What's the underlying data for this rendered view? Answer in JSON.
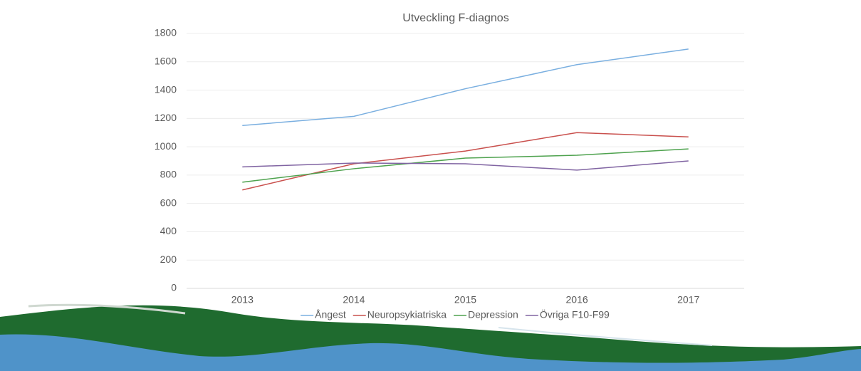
{
  "chart_data": {
    "type": "line",
    "title": "Utveckling F-diagnos",
    "categories": [
      "2013",
      "2014",
      "2015",
      "2016",
      "2017"
    ],
    "series": [
      {
        "name": "Ångest",
        "color": "#7aafe0",
        "values": [
          1150,
          1215,
          1410,
          1580,
          1690
        ]
      },
      {
        "name": "Neuropsykiatriska",
        "color": "#c9504d",
        "values": [
          695,
          880,
          970,
          1100,
          1070
        ]
      },
      {
        "name": "Depression",
        "color": "#4ea24e",
        "values": [
          750,
          845,
          920,
          940,
          985
        ]
      },
      {
        "name": "Övriga F10-F99",
        "color": "#8064a2",
        "values": [
          858,
          885,
          880,
          835,
          900
        ]
      }
    ],
    "ylim": [
      0,
      1800
    ],
    "yticks": [
      0,
      200,
      400,
      600,
      800,
      1000,
      1200,
      1400,
      1600,
      1800
    ],
    "grid": true,
    "legend": "bottom"
  }
}
